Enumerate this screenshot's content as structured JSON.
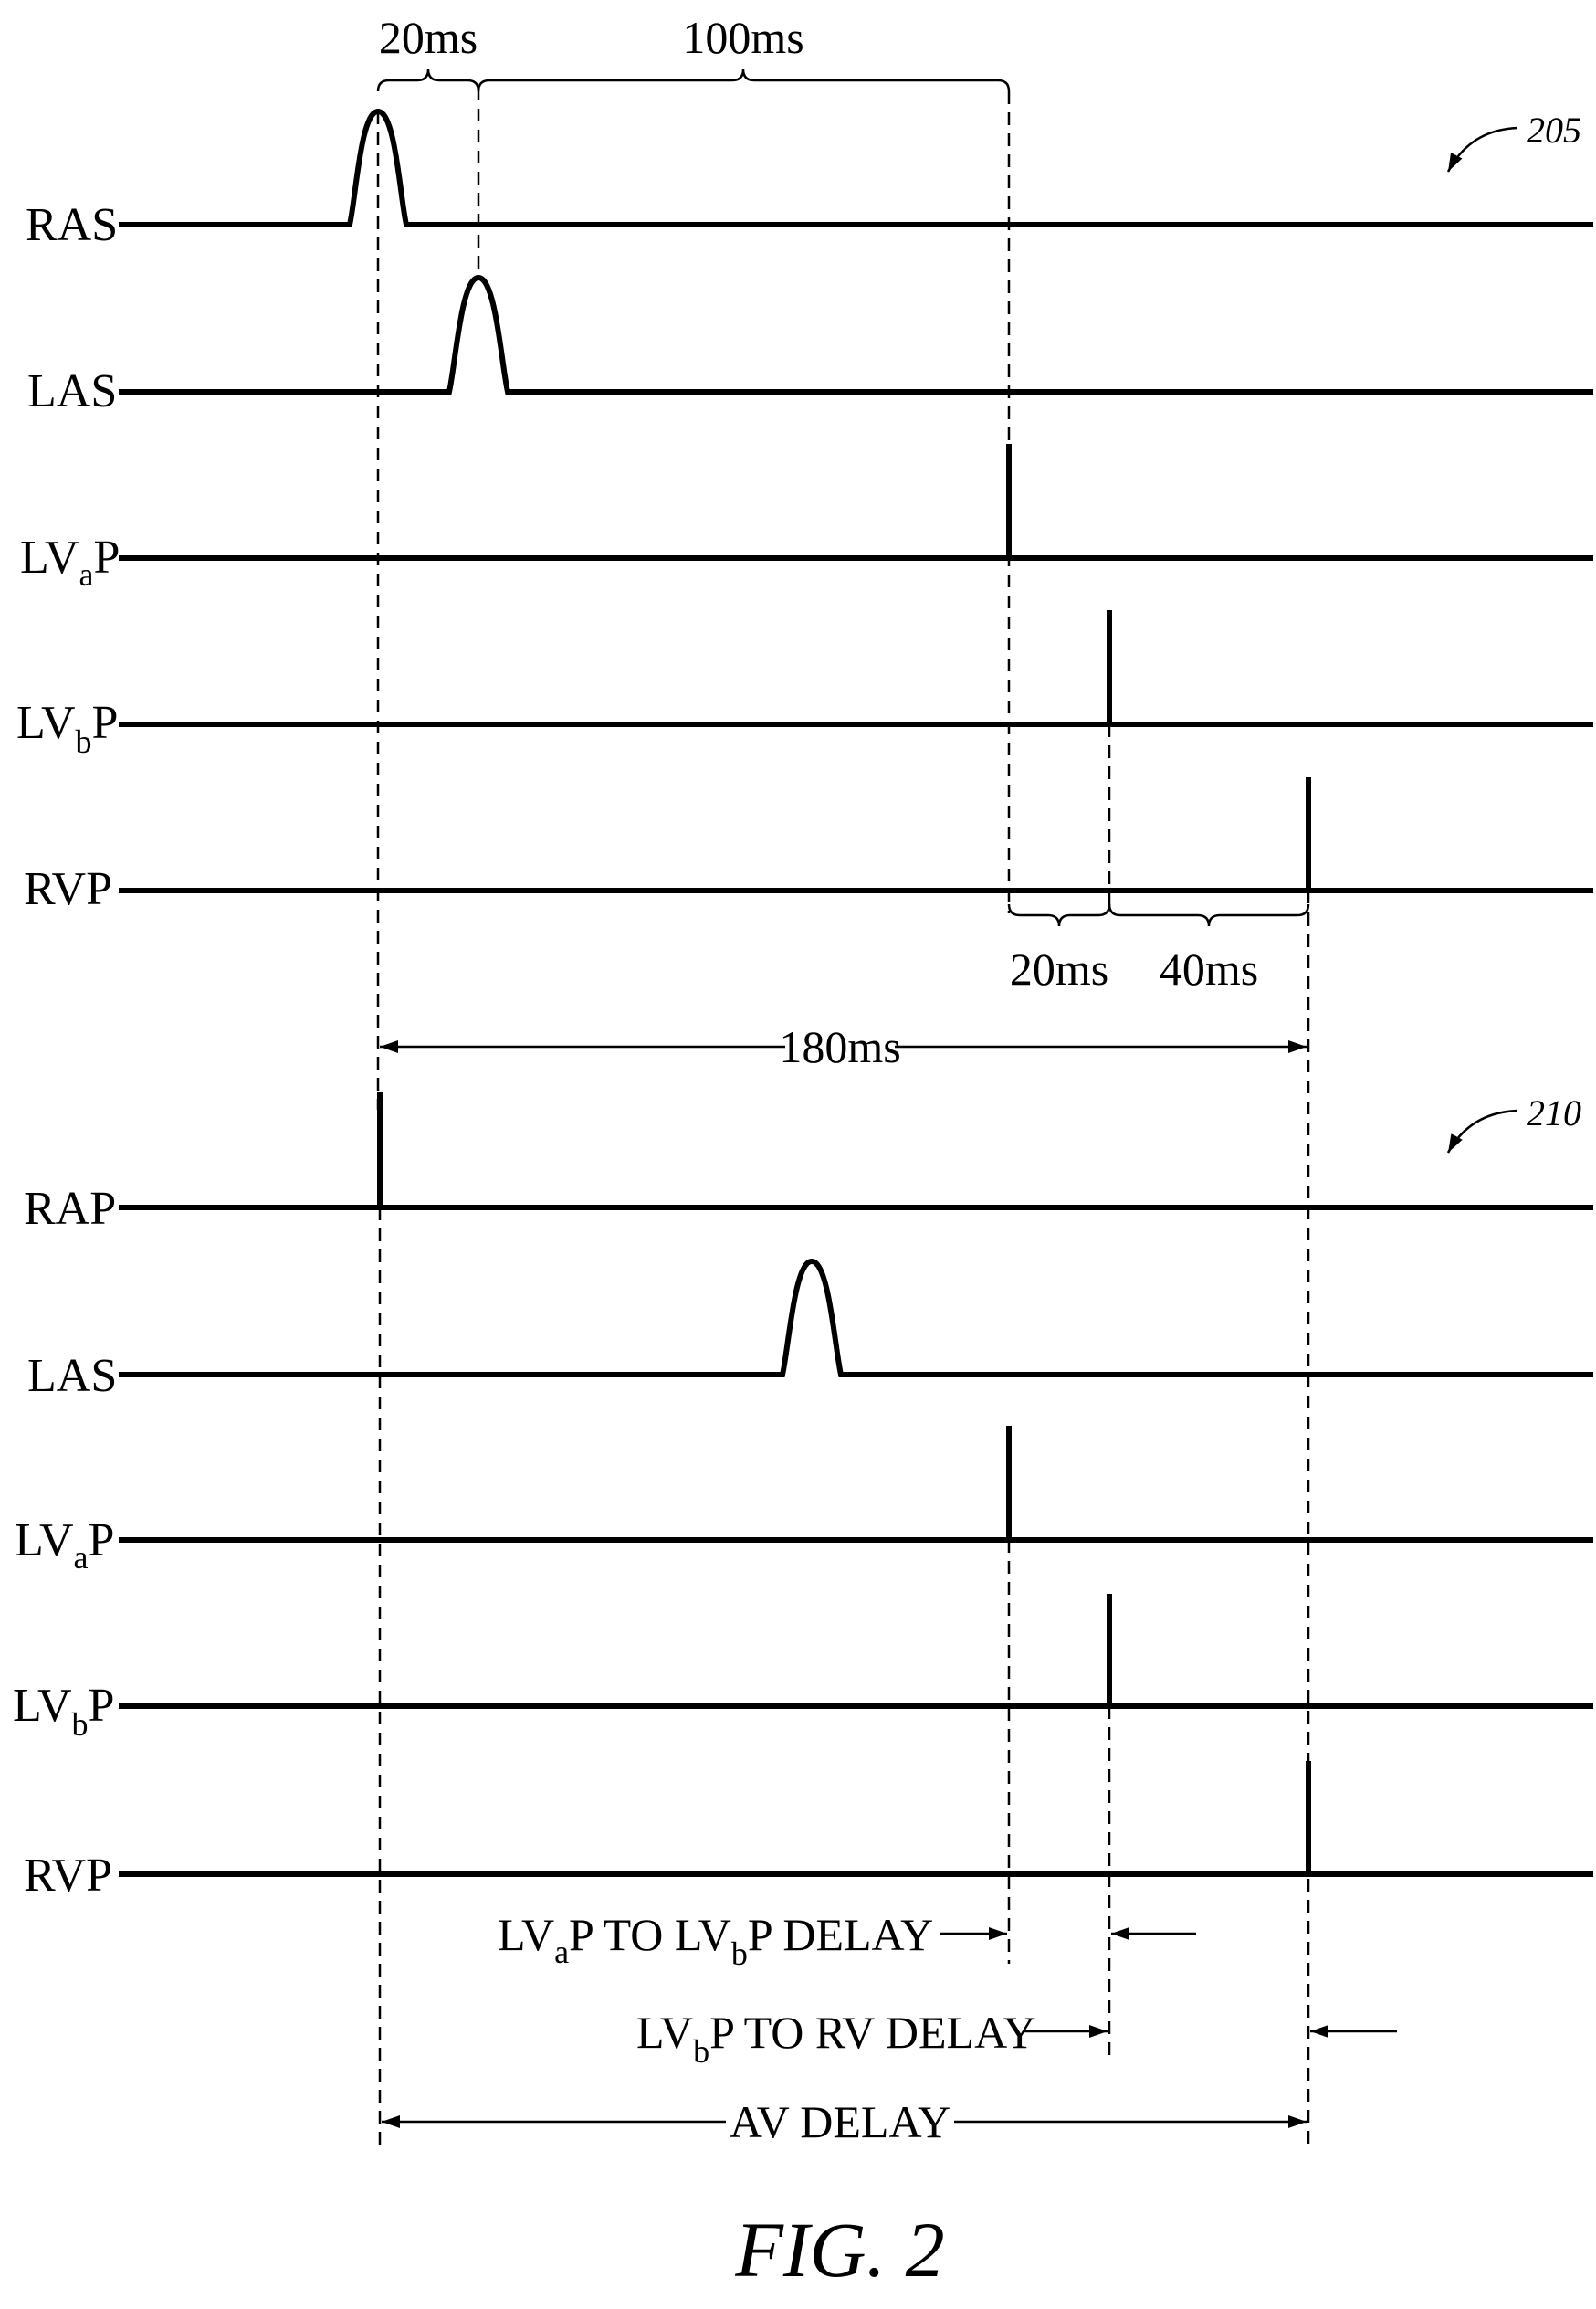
{
  "figure": {
    "label": "FIG. 2",
    "ref_top": "205",
    "ref_bottom": "210"
  },
  "top_panel": {
    "signals": [
      {
        "base": "RAS",
        "sub": "",
        "tail": ""
      },
      {
        "base": "LAS",
        "sub": "",
        "tail": ""
      },
      {
        "base": "LV",
        "sub": "a",
        "tail": "P"
      },
      {
        "base": "LV",
        "sub": "b",
        "tail": "P"
      },
      {
        "base": "RVP",
        "sub": "",
        "tail": ""
      }
    ],
    "timing": {
      "ras_to_las": "20ms",
      "las_to_lvap": "100ms",
      "lvap_to_lvbp": "20ms",
      "lvbp_to_rvp": "40ms",
      "ras_to_rvp": "180ms"
    }
  },
  "bottom_panel": {
    "signals": [
      {
        "base": "RAP",
        "sub": "",
        "tail": ""
      },
      {
        "base": "LAS",
        "sub": "",
        "tail": ""
      },
      {
        "base": "LV",
        "sub": "a",
        "tail": "P"
      },
      {
        "base": "LV",
        "sub": "b",
        "tail": "P"
      },
      {
        "base": "RVP",
        "sub": "",
        "tail": ""
      }
    ],
    "delays": {
      "lvap_to_lvbp": {
        "p1": "LV",
        "s1": "a",
        "p2": "P TO LV",
        "s2": "b",
        "p3": "P DELAY"
      },
      "lvbp_to_rv": {
        "p1": "LV",
        "s1": "b",
        "p2": "P TO RV DELAY"
      },
      "av": "AV DELAY"
    }
  }
}
